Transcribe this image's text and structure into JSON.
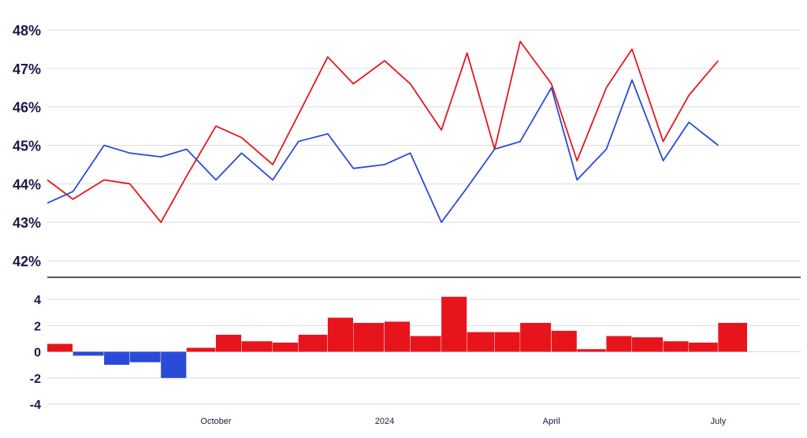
{
  "chart_data": [
    {
      "type": "line",
      "ylim": [
        42,
        48
      ],
      "yticks": [
        "42%",
        "43%",
        "44%",
        "45%",
        "46%",
        "47%",
        "48%"
      ],
      "y_ticks_values": [
        42,
        43,
        44,
        45,
        46,
        47,
        48
      ],
      "grid": true,
      "x": [
        "2023-07-01",
        "2023-07-15",
        "2023-08-01",
        "2023-08-15",
        "2023-09-01",
        "2023-09-15",
        "2023-10-01",
        "2023-10-15",
        "2023-11-01",
        "2023-11-15",
        "2023-12-01",
        "2023-12-15",
        "2024-01-01",
        "2024-01-15",
        "2024-02-01",
        "2024-02-15",
        "2024-03-01",
        "2024-03-15",
        "2024-04-01",
        "2024-04-15",
        "2024-05-01",
        "2024-05-15",
        "2024-06-01",
        "2024-06-15",
        "2024-07-01"
      ],
      "series": [
        {
          "color": "#e8141b",
          "values": [
            44.1,
            43.6,
            44.1,
            44.0,
            43.0,
            44.2,
            45.5,
            45.2,
            44.5,
            45.8,
            47.3,
            46.6,
            47.2,
            46.6,
            45.4,
            47.4,
            44.9,
            47.7,
            46.6,
            44.6,
            46.5,
            47.5,
            45.1,
            46.3,
            47.2
          ]
        },
        {
          "color": "#2a4bd7",
          "values": [
            43.5,
            43.8,
            45.0,
            44.8,
            44.7,
            44.9,
            44.1,
            44.8,
            44.1,
            45.1,
            45.3,
            44.4,
            44.5,
            44.8,
            43.0,
            43.9,
            44.9,
            45.1,
            46.5,
            44.1,
            44.9,
            46.7,
            44.6,
            45.6,
            45.0
          ]
        }
      ]
    },
    {
      "type": "bar",
      "ylim": [
        -4,
        4
      ],
      "yticks": [
        "-4",
        "-2",
        "0",
        "2",
        "4"
      ],
      "y_ticks_values": [
        -4,
        -2,
        0,
        2,
        4
      ],
      "grid": true,
      "xticks": [
        "October",
        "2024",
        "April",
        "July"
      ],
      "xtick_dates": [
        "2023-10-01",
        "2024-01-01",
        "2024-04-01",
        "2024-07-01"
      ],
      "x": [
        "2023-07-01",
        "2023-07-15",
        "2023-08-01",
        "2023-08-15",
        "2023-09-01",
        "2023-09-15",
        "2023-10-01",
        "2023-10-15",
        "2023-11-01",
        "2023-11-15",
        "2023-12-01",
        "2023-12-15",
        "2024-01-01",
        "2024-01-15",
        "2024-02-01",
        "2024-02-15",
        "2024-03-01",
        "2024-03-15",
        "2024-04-01",
        "2024-04-15",
        "2024-05-01",
        "2024-05-15",
        "2024-06-01",
        "2024-06-15",
        "2024-07-01"
      ],
      "values": [
        0.6,
        -0.3,
        -1.0,
        -0.8,
        -2.0,
        0.3,
        1.3,
        0.8,
        0.7,
        1.3,
        2.6,
        2.2,
        2.3,
        1.2,
        4.2,
        1.5,
        1.5,
        2.2,
        1.6,
        0.2,
        1.2,
        1.1,
        0.8,
        0.7,
        2.2
      ],
      "colors": {
        "positive": "#e8141b",
        "negative": "#2a4bd7"
      }
    }
  ]
}
